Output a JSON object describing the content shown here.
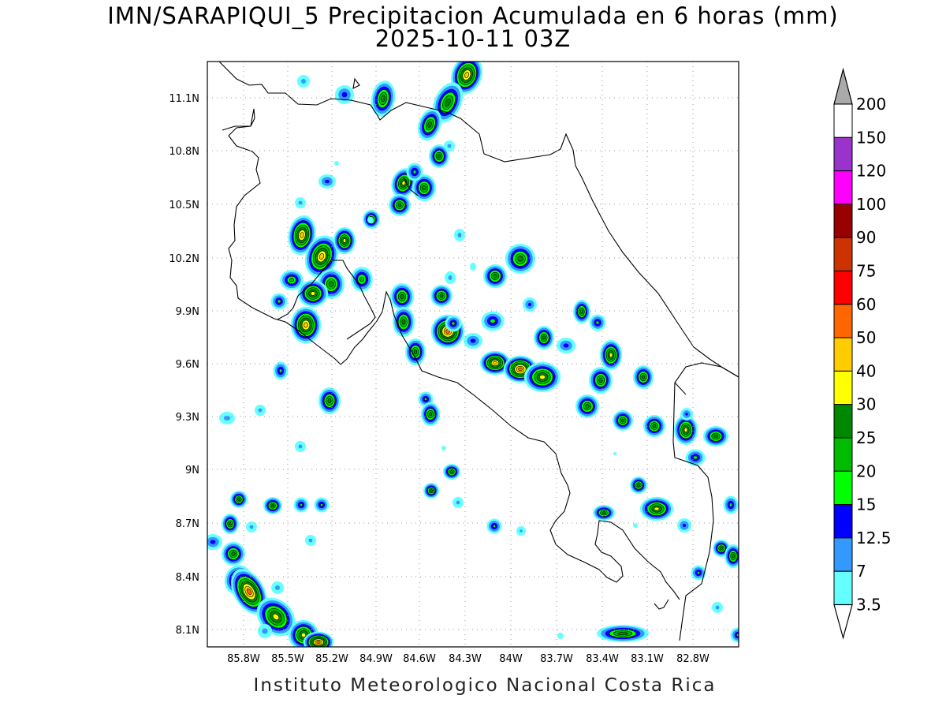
{
  "title": {
    "line1": "IMN/SARAPIQUI_5 Precipitacion Acumulada en 6 horas (mm)",
    "line2": "2025-10-11 03Z"
  },
  "footer": "Instituto Meteorologico Nacional Costa Rica",
  "axes": {
    "lon_labels": [
      "85.8W",
      "85.5W",
      "85.2W",
      "84.9W",
      "84.6W",
      "84.3W",
      "84W",
      "83.7W",
      "83.4W",
      "83.1W",
      "82.8W"
    ],
    "lat_labels": [
      "11.1N",
      "10.8N",
      "10.5N",
      "10.2N",
      "9.9N",
      "9.6N",
      "9.3N",
      "9N",
      "8.7N",
      "8.4N",
      "8.1N"
    ]
  },
  "colorbar": {
    "labels": [
      "200",
      "150",
      "120",
      "100",
      "90",
      "75",
      "60",
      "50",
      "40",
      "30",
      "25",
      "20",
      "15",
      "12.5",
      "7",
      "3.5"
    ],
    "bins": [
      {
        "color": "#ffffff",
        "from": "150",
        "to": "200"
      },
      {
        "color": "#9933cc",
        "from": "120",
        "to": "150"
      },
      {
        "color": "#ff00ff",
        "from": "100",
        "to": "120"
      },
      {
        "color": "#990000",
        "from": "90",
        "to": "100"
      },
      {
        "color": "#cc3300",
        "from": "75",
        "to": "90"
      },
      {
        "color": "#ff0000",
        "from": "60",
        "to": "75"
      },
      {
        "color": "#ff6600",
        "from": "50",
        "to": "60"
      },
      {
        "color": "#ffcc00",
        "from": "40",
        "to": "50"
      },
      {
        "color": "#ffff00",
        "from": "30",
        "to": "40"
      },
      {
        "color": "#008800",
        "from": "25",
        "to": "30"
      },
      {
        "color": "#00bb00",
        "from": "20",
        "to": "25"
      },
      {
        "color": "#00ff00",
        "from": "15",
        "to": "20"
      },
      {
        "color": "#0000ff",
        "from": "12.5",
        "to": "15"
      },
      {
        "color": "#3399ff",
        "from": "7",
        "to": "12.5"
      },
      {
        "color": "#66ffff",
        "from": "3.5",
        "to": "7"
      }
    ],
    "over_color": "#aaaaaa",
    "under_color": "#ffffff"
  },
  "colors": {
    "level1": "#66ffff",
    "level2": "#3399ff",
    "level3": "#0000ff",
    "level4": "#00ff00",
    "level5": "#00bb00",
    "level6": "#008800",
    "level7": "#ffff00",
    "level8": "#ffcc00",
    "level9": "#ff6600",
    "level10": "#ff0000"
  }
}
